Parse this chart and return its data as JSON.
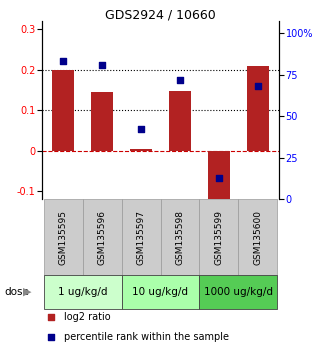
{
  "title": "GDS2924 / 10660",
  "samples": [
    "GSM135595",
    "GSM135596",
    "GSM135597",
    "GSM135598",
    "GSM135599",
    "GSM135600"
  ],
  "log2_ratio": [
    0.2,
    0.145,
    0.005,
    0.148,
    -0.125,
    0.21
  ],
  "percentile_rank": [
    83,
    81,
    42,
    72,
    13,
    68
  ],
  "bar_color": "#B22222",
  "dot_color": "#00008B",
  "ylim_left": [
    -0.12,
    0.32
  ],
  "ylim_right": [
    0,
    107
  ],
  "yticks_left": [
    -0.1,
    0.0,
    0.1,
    0.2,
    0.3
  ],
  "yticks_right": [
    0,
    25,
    50,
    75,
    100
  ],
  "hline_y": [
    0.0,
    0.1,
    0.2
  ],
  "hline_styles": [
    "dashed",
    "dotted",
    "dotted"
  ],
  "hline_colors": [
    "#CC0000",
    "#000000",
    "#000000"
  ],
  "dose_groups": [
    {
      "label": "1 ug/kg/d",
      "indices": [
        0,
        1
      ],
      "color": "#ccffcc"
    },
    {
      "label": "10 ug/kg/d",
      "indices": [
        2,
        3
      ],
      "color": "#aaffaa"
    },
    {
      "label": "1000 ug/kg/d",
      "indices": [
        4,
        5
      ],
      "color": "#55cc55"
    }
  ],
  "dose_label": "dose",
  "legend_bar_label": "log2 ratio",
  "legend_dot_label": "percentile rank within the sample",
  "bar_width": 0.55,
  "label_fontsize": 6.5,
  "title_fontsize": 9,
  "tick_fontsize": 7,
  "dose_fontsize": 7.5,
  "legend_fontsize": 7,
  "sample_bg_color": "#cccccc",
  "sample_border_color": "#999999"
}
